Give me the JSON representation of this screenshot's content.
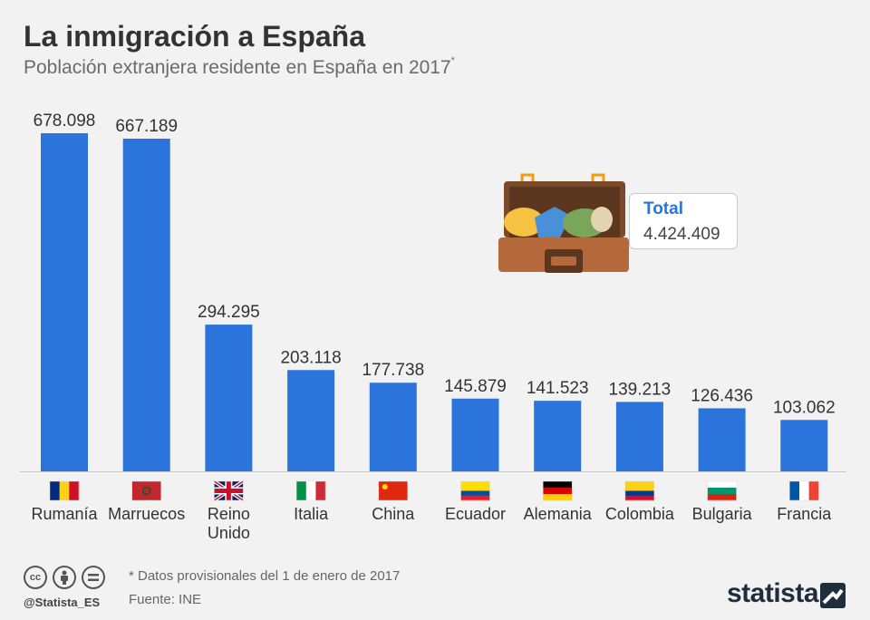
{
  "header": {
    "title": "La inmigración a España",
    "subtitle": "Población extranjera residente en España en 2017",
    "subtitle_mark": "*"
  },
  "callout": {
    "label": "Total",
    "value": "4.424.409"
  },
  "footer": {
    "handle": "@Statista_ES",
    "note": "* Datos provisionales del 1 de enero de 2017",
    "source": "Fuente: INE",
    "brand": "statista",
    "icons": [
      "cc-icon",
      "by-icon",
      "nd-icon"
    ]
  },
  "chart_data": {
    "type": "bar",
    "categories": [
      "Rumanía",
      "Marruecos",
      "Reino Unido",
      "Italia",
      "China",
      "Ecuador",
      "Alemania",
      "Colombia",
      "Bulgaria",
      "Francia"
    ],
    "values": [
      678098,
      667189,
      294295,
      203118,
      177738,
      145879,
      141523,
      139213,
      126436,
      103062
    ],
    "value_labels": [
      "678.098",
      "667.189",
      "294.295",
      "203.118",
      "177.738",
      "145.879",
      "141.523",
      "139.213",
      "126.436",
      "103.062"
    ],
    "flags": [
      "romania-flag-icon",
      "morocco-flag-icon",
      "uk-flag-icon",
      "italy-flag-icon",
      "china-flag-icon",
      "ecuador-flag-icon",
      "germany-flag-icon",
      "colombia-flag-icon",
      "bulgaria-flag-icon",
      "france-flag-icon"
    ],
    "bar_color": "#2a74db",
    "ylim": [
      0,
      678098
    ],
    "grid": false
  }
}
